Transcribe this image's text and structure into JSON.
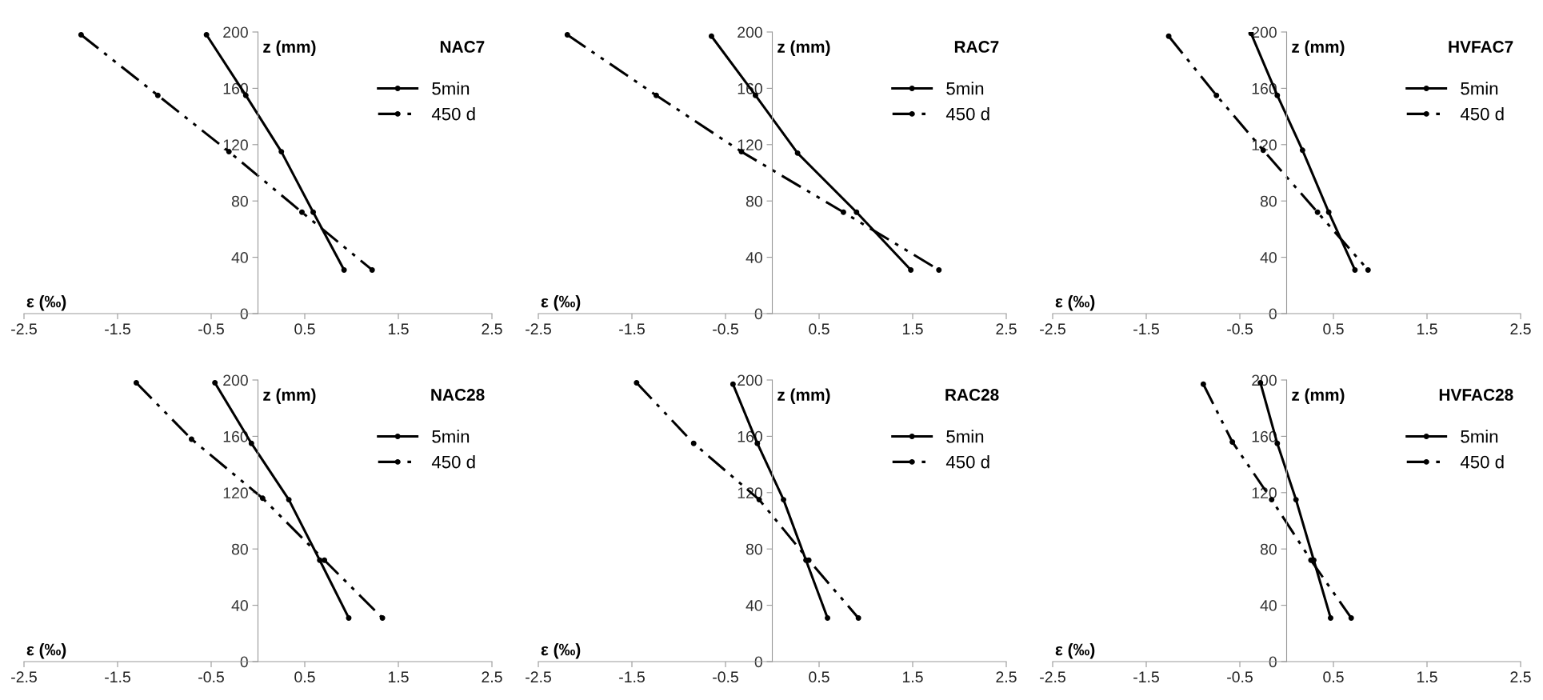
{
  "chart_data": [
    {
      "type": "line",
      "title": "NAC7",
      "xlabel": "ε (‰)",
      "ylabel": "z (mm)",
      "xlim": [
        -2.5,
        2.5
      ],
      "ylim": [
        0,
        200
      ],
      "xticks": [
        -2.5,
        -1.5,
        -0.5,
        0.5,
        1.5,
        2.5
      ],
      "yticks": [
        0,
        40,
        80,
        120,
        160,
        200
      ],
      "grid": false,
      "legend": "top right",
      "marker": "circle",
      "series": [
        {
          "name": "5min",
          "color": "#000000",
          "line_style": "solid",
          "x": [
            -0.55,
            -0.13,
            0.25,
            0.59,
            0.92
          ],
          "values": [
            198,
            155,
            115,
            72,
            31
          ]
        },
        {
          "name": "450 d",
          "color": "#000000",
          "line_style": "dashed",
          "x": [
            -1.89,
            -1.07,
            -0.31,
            0.47,
            1.22
          ],
          "values": [
            198,
            155,
            115,
            72,
            31
          ]
        }
      ]
    },
    {
      "type": "line",
      "title": "RAC7",
      "xlabel": "ε (‰)",
      "ylabel": "z (mm)",
      "xlim": [
        -2.5,
        2.5
      ],
      "ylim": [
        0,
        200
      ],
      "xticks": [
        -2.5,
        -1.5,
        -0.5,
        0.5,
        1.5,
        2.5
      ],
      "yticks": [
        0,
        40,
        80,
        120,
        160,
        200
      ],
      "grid": false,
      "legend": "top right",
      "marker": "circle",
      "series": [
        {
          "name": "5min",
          "color": "#000000",
          "line_style": "solid",
          "x": [
            -0.65,
            -0.18,
            0.27,
            0.9,
            1.48
          ],
          "values": [
            197,
            155,
            114,
            72,
            31
          ]
        },
        {
          "name": "450 d",
          "color": "#000000",
          "line_style": "dashed",
          "x": [
            -2.19,
            -1.24,
            -0.33,
            0.76,
            1.78
          ],
          "values": [
            198,
            155,
            115,
            72,
            31
          ]
        }
      ]
    },
    {
      "type": "line",
      "title": "HVFAC7",
      "xlabel": "ε (‰)",
      "ylabel": "z (mm)",
      "xlim": [
        -2.5,
        2.5
      ],
      "ylim": [
        0,
        200
      ],
      "xticks": [
        -2.5,
        -1.5,
        -0.5,
        0.5,
        1.5,
        2.5
      ],
      "yticks": [
        0,
        40,
        80,
        120,
        160,
        200
      ],
      "grid": false,
      "legend": "top right",
      "marker": "circle",
      "series": [
        {
          "name": "5min",
          "color": "#000000",
          "line_style": "solid",
          "x": [
            -0.38,
            -0.1,
            0.17,
            0.45,
            0.73
          ],
          "values": [
            199,
            155,
            116,
            72,
            31
          ]
        },
        {
          "name": "450 d",
          "color": "#000000",
          "line_style": "dashed",
          "x": [
            -1.26,
            -0.75,
            -0.25,
            0.33,
            0.87
          ],
          "values": [
            197,
            155,
            116,
            72,
            31
          ]
        }
      ]
    },
    {
      "type": "line",
      "title": "NAC28",
      "xlabel": "ε (‰)",
      "ylabel": "z (mm)",
      "xlim": [
        -2.5,
        2.5
      ],
      "ylim": [
        0,
        200
      ],
      "xticks": [
        -2.5,
        -1.5,
        -0.5,
        0.5,
        1.5,
        2.5
      ],
      "yticks": [
        0,
        40,
        80,
        120,
        160,
        200
      ],
      "grid": false,
      "legend": "top right",
      "marker": "circle",
      "series": [
        {
          "name": "5min",
          "color": "#000000",
          "line_style": "solid",
          "x": [
            -0.46,
            -0.07,
            0.33,
            0.66,
            0.97
          ],
          "values": [
            198,
            155,
            115,
            72,
            31
          ]
        },
        {
          "name": "450 d",
          "color": "#000000",
          "line_style": "dashed",
          "x": [
            -1.3,
            -0.71,
            0.05,
            0.71,
            1.33
          ],
          "values": [
            198,
            158,
            116,
            72,
            31
          ]
        }
      ]
    },
    {
      "type": "line",
      "title": "RAC28",
      "xlabel": "ε (‰)",
      "ylabel": "z (mm)",
      "xlim": [
        -2.5,
        2.5
      ],
      "ylim": [
        0,
        200
      ],
      "xticks": [
        -2.5,
        -1.5,
        -0.5,
        0.5,
        1.5,
        2.5
      ],
      "yticks": [
        0,
        40,
        80,
        120,
        160,
        200
      ],
      "grid": false,
      "legend": "top right",
      "marker": "circle",
      "series": [
        {
          "name": "5min",
          "color": "#000000",
          "line_style": "solid",
          "x": [
            -0.42,
            -0.16,
            0.12,
            0.36,
            0.59
          ],
          "values": [
            197,
            155,
            115,
            72,
            31
          ]
        },
        {
          "name": "450 d",
          "color": "#000000",
          "line_style": "dashed",
          "x": [
            -1.45,
            -0.84,
            -0.14,
            0.39,
            0.92
          ],
          "values": [
            198,
            155,
            115,
            72,
            31
          ]
        }
      ]
    },
    {
      "type": "line",
      "title": "HVFAC28",
      "xlabel": "ε (‰)",
      "ylabel": "z (mm)",
      "xlim": [
        -2.5,
        2.5
      ],
      "ylim": [
        0,
        200
      ],
      "xticks": [
        -2.5,
        -1.5,
        -0.5,
        0.5,
        1.5,
        2.5
      ],
      "yticks": [
        0,
        40,
        80,
        120,
        160,
        200
      ],
      "grid": false,
      "legend": "top right",
      "marker": "circle",
      "series": [
        {
          "name": "5min",
          "color": "#000000",
          "line_style": "solid",
          "x": [
            -0.28,
            -0.1,
            0.1,
            0.29,
            0.47
          ],
          "values": [
            198,
            155,
            115,
            72,
            31
          ]
        },
        {
          "name": "450 d",
          "color": "#000000",
          "line_style": "dashed",
          "x": [
            -0.89,
            -0.58,
            -0.16,
            0.26,
            0.69
          ],
          "values": [
            197,
            156,
            115,
            72,
            31
          ]
        }
      ]
    }
  ]
}
